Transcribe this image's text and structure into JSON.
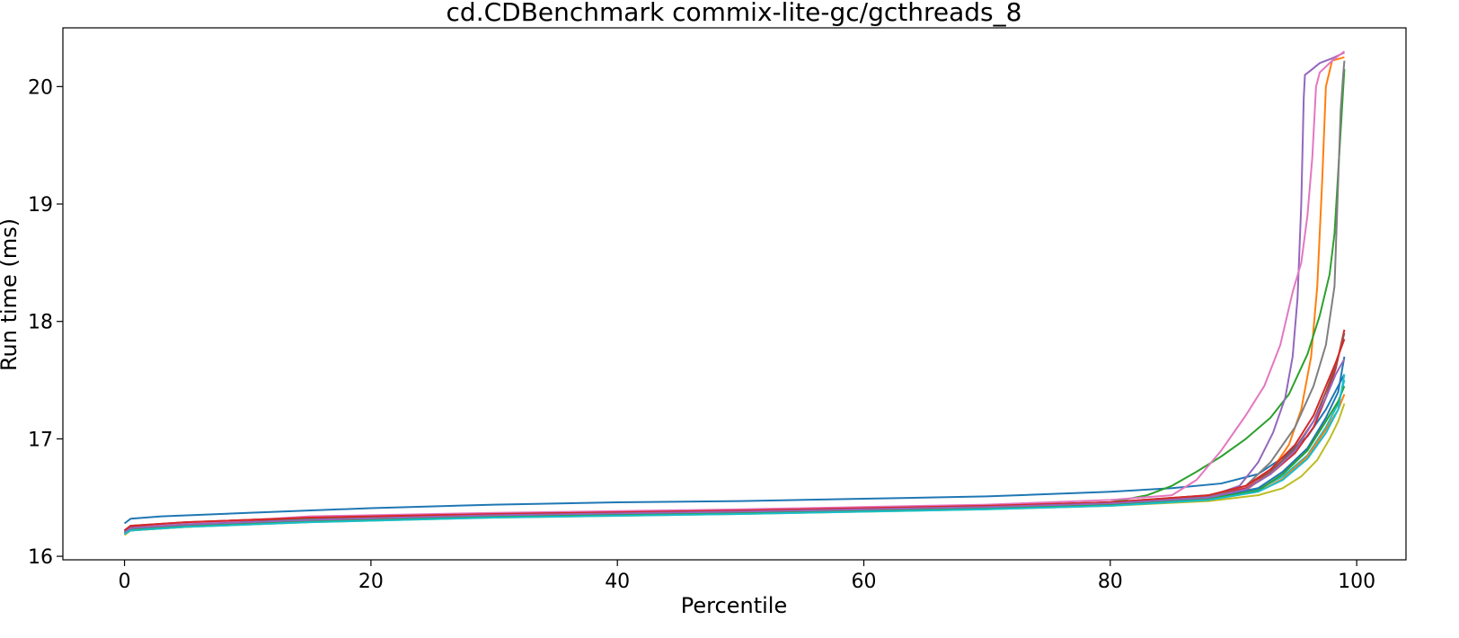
{
  "chart_data": {
    "type": "line",
    "title": "cd.CDBenchmark commix-lite-gc/gcthreads_8",
    "xlabel": "Percentile",
    "ylabel": "Run time (ms)",
    "xlim": [
      -5,
      104
    ],
    "ylim": [
      15.97,
      20.5
    ],
    "xticks": [
      0,
      20,
      40,
      60,
      80,
      100
    ],
    "yticks": [
      16,
      17,
      18,
      19,
      20
    ],
    "grid": false,
    "series": [
      {
        "color": "#1f77b4",
        "points": [
          [
            0,
            16.28
          ],
          [
            0.5,
            16.32
          ],
          [
            3,
            16.34
          ],
          [
            10,
            16.37
          ],
          [
            20,
            16.41
          ],
          [
            30,
            16.44
          ],
          [
            40,
            16.46
          ],
          [
            50,
            16.47
          ],
          [
            60,
            16.49
          ],
          [
            70,
            16.51
          ],
          [
            80,
            16.55
          ],
          [
            85,
            16.58
          ],
          [
            89,
            16.62
          ],
          [
            92,
            16.7
          ],
          [
            94,
            16.84
          ],
          [
            96,
            17.02
          ],
          [
            97.5,
            17.25
          ],
          [
            98.5,
            17.45
          ],
          [
            99,
            17.55
          ]
        ]
      },
      {
        "color": "#ff7f0e",
        "points": [
          [
            0,
            16.2
          ],
          [
            0.5,
            16.24
          ],
          [
            5,
            16.27
          ],
          [
            15,
            16.31
          ],
          [
            30,
            16.35
          ],
          [
            50,
            16.38
          ],
          [
            70,
            16.42
          ],
          [
            80,
            16.45
          ],
          [
            88,
            16.5
          ],
          [
            91,
            16.56
          ],
          [
            93,
            16.72
          ],
          [
            94.5,
            16.95
          ],
          [
            95.5,
            17.25
          ],
          [
            96.3,
            17.7
          ],
          [
            96.8,
            18.3
          ],
          [
            97.2,
            19.2
          ],
          [
            97.5,
            20.0
          ],
          [
            98,
            20.22
          ],
          [
            99,
            20.25
          ]
        ]
      },
      {
        "color": "#2ca02c",
        "points": [
          [
            0,
            16.21
          ],
          [
            0.5,
            16.25
          ],
          [
            5,
            16.28
          ],
          [
            15,
            16.32
          ],
          [
            30,
            16.35
          ],
          [
            50,
            16.38
          ],
          [
            70,
            16.42
          ],
          [
            80,
            16.46
          ],
          [
            83,
            16.52
          ],
          [
            85,
            16.6
          ],
          [
            87,
            16.72
          ],
          [
            89,
            16.85
          ],
          [
            91,
            17.0
          ],
          [
            93,
            17.18
          ],
          [
            94.5,
            17.38
          ],
          [
            96,
            17.72
          ],
          [
            97,
            18.05
          ],
          [
            97.8,
            18.4
          ],
          [
            98.2,
            18.75
          ],
          [
            98.6,
            19.45
          ],
          [
            99,
            20.15
          ]
        ]
      },
      {
        "color": "#d62728",
        "points": [
          [
            0,
            16.19
          ],
          [
            0.5,
            16.25
          ],
          [
            5,
            16.28
          ],
          [
            15,
            16.33
          ],
          [
            30,
            16.36
          ],
          [
            50,
            16.39
          ],
          [
            70,
            16.43
          ],
          [
            80,
            16.46
          ],
          [
            88,
            16.51
          ],
          [
            91,
            16.58
          ],
          [
            93,
            16.7
          ],
          [
            95,
            16.88
          ],
          [
            96.5,
            17.1
          ],
          [
            97.5,
            17.35
          ],
          [
            98.3,
            17.6
          ],
          [
            99,
            17.93
          ]
        ]
      },
      {
        "color": "#9467bd",
        "points": [
          [
            0,
            16.19
          ],
          [
            0.5,
            16.23
          ],
          [
            5,
            16.26
          ],
          [
            15,
            16.31
          ],
          [
            30,
            16.34
          ],
          [
            50,
            16.37
          ],
          [
            70,
            16.41
          ],
          [
            80,
            16.45
          ],
          [
            88,
            16.51
          ],
          [
            90.5,
            16.6
          ],
          [
            92,
            16.8
          ],
          [
            93.2,
            17.05
          ],
          [
            94.2,
            17.35
          ],
          [
            94.8,
            17.7
          ],
          [
            95.2,
            18.2
          ],
          [
            95.5,
            19.0
          ],
          [
            95.7,
            19.9
          ],
          [
            95.8,
            20.1
          ],
          [
            96.3,
            20.14
          ],
          [
            97,
            20.2
          ],
          [
            98,
            20.24
          ],
          [
            99,
            20.29
          ]
        ]
      },
      {
        "color": "#8c564b",
        "points": [
          [
            0,
            16.22
          ],
          [
            0.5,
            16.26
          ],
          [
            5,
            16.29
          ],
          [
            15,
            16.33
          ],
          [
            30,
            16.36
          ],
          [
            50,
            16.39
          ],
          [
            70,
            16.43
          ],
          [
            80,
            16.46
          ],
          [
            88,
            16.52
          ],
          [
            91,
            16.6
          ],
          [
            93,
            16.72
          ],
          [
            95,
            16.92
          ],
          [
            96.5,
            17.15
          ],
          [
            97.5,
            17.4
          ],
          [
            98.3,
            17.62
          ],
          [
            99,
            17.9
          ]
        ]
      },
      {
        "color": "#e377c2",
        "points": [
          [
            0,
            16.2
          ],
          [
            0.5,
            16.24
          ],
          [
            5,
            16.28
          ],
          [
            12,
            16.32
          ],
          [
            15,
            16.34
          ],
          [
            30,
            16.37
          ],
          [
            50,
            16.4
          ],
          [
            70,
            16.44
          ],
          [
            80,
            16.48
          ],
          [
            85,
            16.52
          ],
          [
            87,
            16.65
          ],
          [
            89,
            16.9
          ],
          [
            91,
            17.2
          ],
          [
            92.5,
            17.45
          ],
          [
            93.8,
            17.8
          ],
          [
            94.8,
            18.25
          ],
          [
            95.5,
            18.5
          ],
          [
            96,
            18.9
          ],
          [
            96.4,
            19.4
          ],
          [
            96.7,
            20.0
          ],
          [
            97,
            20.12
          ],
          [
            98,
            20.22
          ],
          [
            99,
            20.3
          ]
        ]
      },
      {
        "color": "#7f7f7f",
        "points": [
          [
            0,
            16.2
          ],
          [
            0.5,
            16.24
          ],
          [
            5,
            16.27
          ],
          [
            15,
            16.31
          ],
          [
            30,
            16.35
          ],
          [
            50,
            16.38
          ],
          [
            70,
            16.42
          ],
          [
            80,
            16.45
          ],
          [
            88,
            16.51
          ],
          [
            91,
            16.6
          ],
          [
            93,
            16.8
          ],
          [
            95,
            17.1
          ],
          [
            96.5,
            17.45
          ],
          [
            97.5,
            17.8
          ],
          [
            98.2,
            18.3
          ],
          [
            98.5,
            19.2
          ],
          [
            98.7,
            19.8
          ],
          [
            98.9,
            20.1
          ],
          [
            99,
            20.22
          ]
        ]
      },
      {
        "color": "#bcbd22",
        "points": [
          [
            0,
            16.18
          ],
          [
            0.5,
            16.22
          ],
          [
            5,
            16.25
          ],
          [
            15,
            16.29
          ],
          [
            30,
            16.33
          ],
          [
            50,
            16.36
          ],
          [
            70,
            16.4
          ],
          [
            80,
            16.43
          ],
          [
            88,
            16.47
          ],
          [
            92,
            16.52
          ],
          [
            94,
            16.58
          ],
          [
            95.5,
            16.68
          ],
          [
            96.8,
            16.82
          ],
          [
            97.8,
            17.0
          ],
          [
            98.5,
            17.15
          ],
          [
            99,
            17.3
          ]
        ]
      },
      {
        "color": "#17becf",
        "points": [
          [
            0,
            16.2
          ],
          [
            0.5,
            16.23
          ],
          [
            5,
            16.26
          ],
          [
            15,
            16.3
          ],
          [
            30,
            16.34
          ],
          [
            50,
            16.37
          ],
          [
            70,
            16.41
          ],
          [
            80,
            16.44
          ],
          [
            88,
            16.49
          ],
          [
            92,
            16.57
          ],
          [
            94,
            16.68
          ],
          [
            96,
            16.86
          ],
          [
            97.5,
            17.1
          ],
          [
            98.5,
            17.3
          ],
          [
            99,
            17.5
          ]
        ]
      },
      {
        "color": "#1f77b4",
        "points": [
          [
            0,
            16.21
          ],
          [
            0.5,
            16.24
          ],
          [
            5,
            16.27
          ],
          [
            15,
            16.31
          ],
          [
            30,
            16.35
          ],
          [
            50,
            16.38
          ],
          [
            70,
            16.42
          ],
          [
            80,
            16.45
          ],
          [
            88,
            16.5
          ],
          [
            92,
            16.58
          ],
          [
            94,
            16.72
          ],
          [
            96,
            16.92
          ],
          [
            97.5,
            17.18
          ],
          [
            98.5,
            17.4
          ],
          [
            99,
            17.7
          ]
        ]
      },
      {
        "color": "#ff7f0e",
        "points": [
          [
            0,
            16.19
          ],
          [
            0.5,
            16.22
          ],
          [
            5,
            16.25
          ],
          [
            15,
            16.3
          ],
          [
            30,
            16.34
          ],
          [
            50,
            16.37
          ],
          [
            70,
            16.41
          ],
          [
            80,
            16.44
          ],
          [
            88,
            16.48
          ],
          [
            92,
            16.55
          ],
          [
            94,
            16.66
          ],
          [
            96,
            16.85
          ],
          [
            97.5,
            17.08
          ],
          [
            98.5,
            17.25
          ],
          [
            99,
            17.38
          ]
        ]
      },
      {
        "color": "#2ca02c",
        "points": [
          [
            0,
            16.2
          ],
          [
            0.5,
            16.23
          ],
          [
            5,
            16.26
          ],
          [
            15,
            16.3
          ],
          [
            30,
            16.34
          ],
          [
            50,
            16.37
          ],
          [
            70,
            16.41
          ],
          [
            80,
            16.44
          ],
          [
            88,
            16.49
          ],
          [
            92,
            16.56
          ],
          [
            94,
            16.7
          ],
          [
            96,
            16.9
          ],
          [
            97.5,
            17.15
          ],
          [
            98.5,
            17.32
          ],
          [
            99,
            17.45
          ]
        ]
      },
      {
        "color": "#d62728",
        "points": [
          [
            0,
            16.22
          ],
          [
            0.5,
            16.26
          ],
          [
            5,
            16.29
          ],
          [
            15,
            16.33
          ],
          [
            30,
            16.36
          ],
          [
            50,
            16.39
          ],
          [
            70,
            16.43
          ],
          [
            80,
            16.46
          ],
          [
            88,
            16.52
          ],
          [
            91,
            16.6
          ],
          [
            93,
            16.74
          ],
          [
            95,
            16.95
          ],
          [
            96.5,
            17.2
          ],
          [
            97.5,
            17.45
          ],
          [
            98.3,
            17.65
          ],
          [
            99,
            17.85
          ]
        ]
      },
      {
        "color": "#9467bd",
        "points": [
          [
            0,
            16.2
          ],
          [
            0.5,
            16.24
          ],
          [
            5,
            16.27
          ],
          [
            15,
            16.31
          ],
          [
            30,
            16.35
          ],
          [
            50,
            16.38
          ],
          [
            70,
            16.42
          ],
          [
            80,
            16.45
          ],
          [
            88,
            16.5
          ],
          [
            91,
            16.57
          ],
          [
            93,
            16.7
          ],
          [
            95,
            16.9
          ],
          [
            96.5,
            17.15
          ],
          [
            97.5,
            17.35
          ],
          [
            98.3,
            17.55
          ],
          [
            99,
            17.68
          ]
        ]
      },
      {
        "color": "#17becf",
        "points": [
          [
            0,
            16.19
          ],
          [
            0.5,
            16.22
          ],
          [
            5,
            16.25
          ],
          [
            15,
            16.29
          ],
          [
            30,
            16.33
          ],
          [
            50,
            16.36
          ],
          [
            70,
            16.4
          ],
          [
            80,
            16.43
          ],
          [
            88,
            16.48
          ],
          [
            92,
            16.55
          ],
          [
            94,
            16.65
          ],
          [
            96,
            16.83
          ],
          [
            97.5,
            17.05
          ],
          [
            98.5,
            17.25
          ],
          [
            99,
            17.55
          ]
        ]
      }
    ]
  }
}
